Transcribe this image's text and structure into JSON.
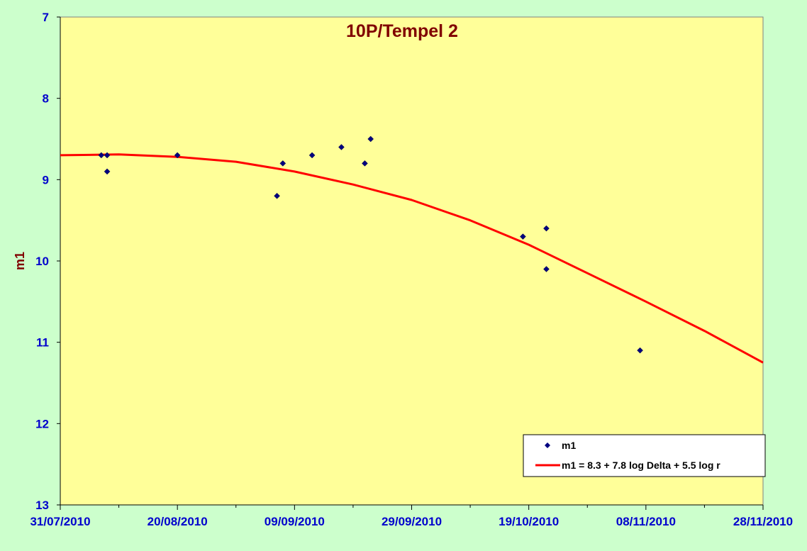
{
  "chart_data": {
    "type": "scatter",
    "title": "10P/Tempel 2",
    "ylabel": "m1",
    "xlabel": "",
    "ylim": [
      7,
      13
    ],
    "y_inverted": true,
    "y_ticks": [
      "7",
      "8",
      "9",
      "10",
      "11",
      "12",
      "13"
    ],
    "x_tick_labels": [
      "31/07/2010",
      "20/08/2010",
      "09/09/2010",
      "29/09/2010",
      "19/10/2010",
      "08/11/2010",
      "28/11/2010"
    ],
    "xlim": [
      "2010-07-31",
      "2010-11-28"
    ],
    "grid": false,
    "legend_position": "bottom-right",
    "plot_background": "#ffff99",
    "page_background": "#ccffcc",
    "series": [
      {
        "name": "m1",
        "kind": "points",
        "color": "#000080",
        "points": [
          {
            "date": "2010-08-07",
            "y": 8.7
          },
          {
            "date": "2010-08-08",
            "y": 8.7
          },
          {
            "date": "2010-08-08",
            "y": 8.9
          },
          {
            "date": "2010-08-20",
            "y": 8.7
          },
          {
            "date": "2010-09-06",
            "y": 9.2
          },
          {
            "date": "2010-09-07",
            "y": 8.8
          },
          {
            "date": "2010-09-12",
            "y": 8.7
          },
          {
            "date": "2010-09-17",
            "y": 8.6
          },
          {
            "date": "2010-09-21",
            "y": 8.8
          },
          {
            "date": "2010-09-22",
            "y": 8.5
          },
          {
            "date": "2010-10-18",
            "y": 9.7
          },
          {
            "date": "2010-10-22",
            "y": 9.6
          },
          {
            "date": "2010-10-22",
            "y": 10.1
          },
          {
            "date": "2010-11-07",
            "y": 11.1
          }
        ]
      },
      {
        "name": "m1 = 8.3 + 7.8 log Delta + 5.5 log r",
        "kind": "line",
        "color": "#ff0000",
        "points": [
          {
            "date": "2010-07-31",
            "y": 8.7
          },
          {
            "date": "2010-08-10",
            "y": 8.69
          },
          {
            "date": "2010-08-20",
            "y": 8.72
          },
          {
            "date": "2010-08-30",
            "y": 8.78
          },
          {
            "date": "2010-09-09",
            "y": 8.9
          },
          {
            "date": "2010-09-19",
            "y": 9.06
          },
          {
            "date": "2010-09-29",
            "y": 9.25
          },
          {
            "date": "2010-10-09",
            "y": 9.5
          },
          {
            "date": "2010-10-19",
            "y": 9.8
          },
          {
            "date": "2010-10-29",
            "y": 10.15
          },
          {
            "date": "2010-11-08",
            "y": 10.5
          },
          {
            "date": "2010-11-18",
            "y": 10.86
          },
          {
            "date": "2010-11-28",
            "y": 11.25
          }
        ]
      }
    ]
  }
}
